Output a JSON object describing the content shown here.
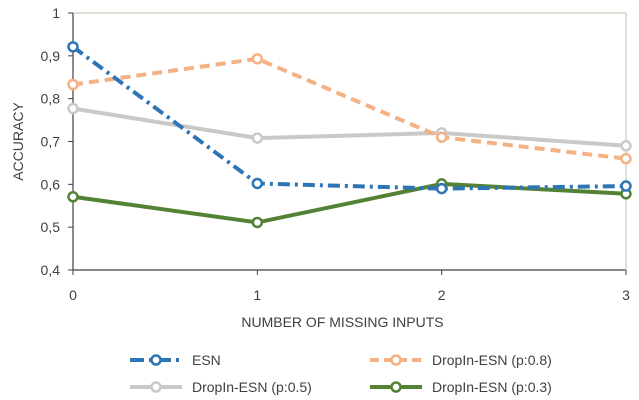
{
  "chart_data": {
    "type": "line",
    "xlabel": "NUMBER OF MISSING INPUTS",
    "ylabel": "ACCURACY",
    "x": [
      0,
      1,
      2,
      3
    ],
    "xlim": [
      0,
      3
    ],
    "ylim": [
      0.4,
      1.0
    ],
    "y_ticks": [
      "0,4",
      "0,5",
      "0,6",
      "0,7",
      "0,8",
      "0,9",
      "1"
    ],
    "x_ticks": [
      "0",
      "1",
      "2",
      "3"
    ],
    "grid": false,
    "legend_position": "bottom",
    "series": [
      {
        "name": "ESN",
        "values": [
          0.921,
          0.602,
          0.59,
          0.596
        ],
        "color": "#2e75b6",
        "dash": "dashdot"
      },
      {
        "name": "DropIn-ESN (p:0.8)",
        "values": [
          0.833,
          0.893,
          0.71,
          0.66
        ],
        "color": "#f4b183",
        "dash": "dash"
      },
      {
        "name": "DropIn-ESN (p:0.5)",
        "values": [
          0.777,
          0.708,
          0.72,
          0.69
        ],
        "color": "#c9c9c9",
        "dash": "solid"
      },
      {
        "name": "DropIn-ESN (p:0.3)",
        "values": [
          0.571,
          0.511,
          0.601,
          0.578
        ],
        "color": "#548235",
        "dash": "solid"
      }
    ]
  }
}
